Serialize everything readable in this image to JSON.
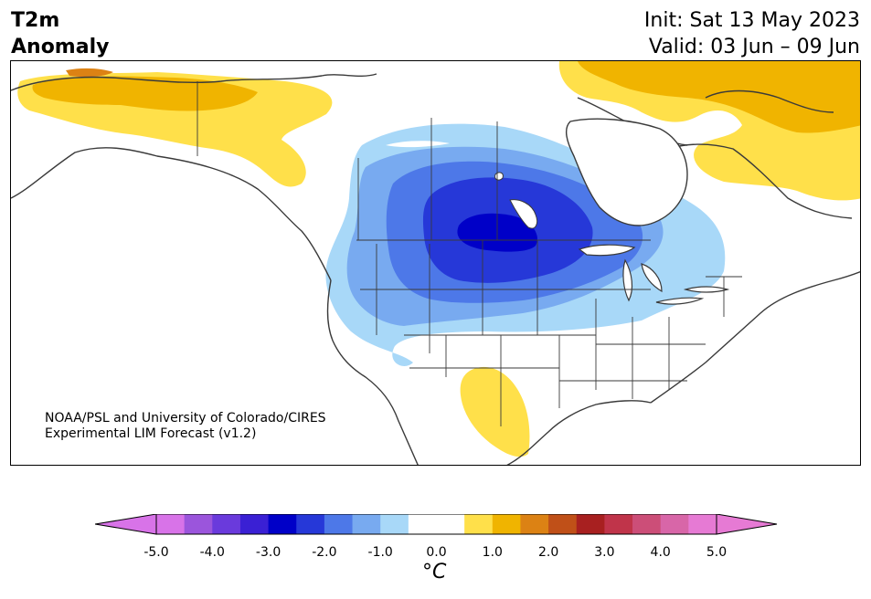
{
  "title": {
    "line1": "T2m",
    "line2": "Anomaly"
  },
  "header_right": {
    "init": "Init: Sat 13 May 2023",
    "valid": "Valid: 03 Jun – 09 Jun"
  },
  "credit": {
    "line1": "NOAA/PSL and University of Colorado/CIRES",
    "line2": "Experimental LIM Forecast (v1.2)"
  },
  "colorbar": {
    "unit": "°C",
    "ticks": [
      "-5.0",
      "-4.0",
      "-3.0",
      "-2.0",
      "-1.0",
      "0.0",
      "1.0",
      "2.0",
      "3.0",
      "4.0",
      "5.0"
    ],
    "colors": [
      "#d873e8",
      "#9b55dc",
      "#6a3adc",
      "#3a20d4",
      "#0000c8",
      "#2638d8",
      "#4d78e8",
      "#78aaf0",
      "#a8d8f8",
      "#ffffff",
      "#ffffff",
      "#ffe04a",
      "#f0b400",
      "#dc8214",
      "#c05018",
      "#a82020",
      "#c0344a",
      "#cc4e78",
      "#d866a8",
      "#e67ad4"
    ],
    "under_color": "#d873e8",
    "over_color": "#e67ad4"
  },
  "map": {
    "colors": {
      "neg1": "#a8d8f8",
      "neg15": "#78aaf0",
      "neg2": "#4d78e8",
      "neg25": "#2638d8",
      "neg3": "#0000c8",
      "pos1": "#ffe04a",
      "pos15": "#f0b400",
      "pos2": "#dc8214",
      "coast": "#3a3a3a"
    }
  }
}
